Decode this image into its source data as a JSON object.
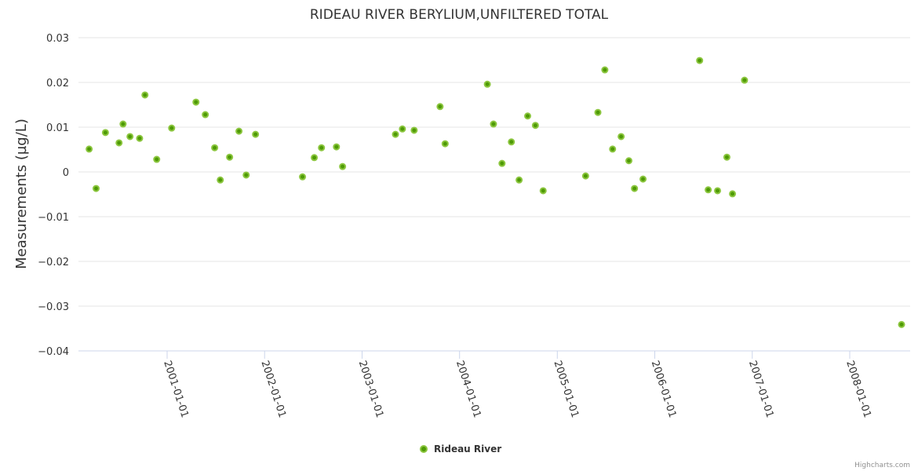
{
  "chart_data": {
    "type": "scatter",
    "title": "RIDEAU RIVER BERYLIUM,UNFILTERED TOTAL",
    "xlabel": "",
    "ylabel": "Measurements (µg/L)",
    "ylim": [
      -0.04,
      0.03
    ],
    "yticks": [
      "0.03",
      "0.02",
      "0.01",
      "0",
      "−0.01",
      "−0.02",
      "−0.03",
      "−0.04"
    ],
    "ytick_values": [
      0.03,
      0.02,
      0.01,
      0,
      -0.01,
      -0.02,
      -0.03,
      -0.04
    ],
    "xticks": [
      "2001-01-01",
      "2002-01-01",
      "2003-01-01",
      "2004-01-01",
      "2005-01-01",
      "2006-01-01",
      "2007-01-01",
      "2008-01-01"
    ],
    "grid": true,
    "legend_position": "bottom-center",
    "series": [
      {
        "name": "Rideau River",
        "color": "#4e9a06",
        "border_color": "#8cc63f",
        "points": [
          [
            "2000-03-15",
            0.0051
          ],
          [
            "2000-04-10",
            -0.0037
          ],
          [
            "2000-05-15",
            0.0088
          ],
          [
            "2000-07-05",
            0.0065
          ],
          [
            "2000-07-20",
            0.0107
          ],
          [
            "2000-08-15",
            0.0079
          ],
          [
            "2000-09-20",
            0.0075
          ],
          [
            "2000-10-10",
            0.0172
          ],
          [
            "2000-11-23",
            0.0028
          ],
          [
            "2001-01-18",
            0.0098
          ],
          [
            "2001-04-19",
            0.0156
          ],
          [
            "2001-05-24",
            0.0128
          ],
          [
            "2001-06-28",
            0.0054
          ],
          [
            "2001-07-19",
            -0.0018
          ],
          [
            "2001-08-23",
            0.0033
          ],
          [
            "2001-09-27",
            0.0091
          ],
          [
            "2001-10-24",
            -0.0007
          ],
          [
            "2001-11-28",
            0.0084
          ],
          [
            "2002-05-23",
            -0.0011
          ],
          [
            "2002-07-06",
            0.0032
          ],
          [
            "2002-08-02",
            0.0054
          ],
          [
            "2002-09-27",
            0.0056
          ],
          [
            "2002-10-20",
            0.0012
          ],
          [
            "2003-05-06",
            0.0084
          ],
          [
            "2003-06-01",
            0.0096
          ],
          [
            "2003-07-15",
            0.0093
          ],
          [
            "2003-10-20",
            0.0146
          ],
          [
            "2003-11-08",
            0.0063
          ],
          [
            "2004-04-14",
            0.0196
          ],
          [
            "2004-05-07",
            0.0107
          ],
          [
            "2004-06-08",
            0.0019
          ],
          [
            "2004-07-13",
            0.0067
          ],
          [
            "2004-08-11",
            -0.0018
          ],
          [
            "2004-09-12",
            0.0125
          ],
          [
            "2004-10-11",
            0.0104
          ],
          [
            "2004-11-09",
            -0.0042
          ],
          [
            "2005-04-17",
            -0.0009
          ],
          [
            "2005-06-02",
            0.0133
          ],
          [
            "2005-06-28",
            0.0228
          ],
          [
            "2005-07-27",
            0.0051
          ],
          [
            "2005-08-28",
            0.0079
          ],
          [
            "2005-09-26",
            0.0025
          ],
          [
            "2005-10-17",
            -0.0037
          ],
          [
            "2005-11-18",
            -0.0016
          ],
          [
            "2006-06-18",
            0.0249
          ],
          [
            "2006-07-20",
            -0.004
          ],
          [
            "2006-08-24",
            -0.0042
          ],
          [
            "2006-09-28",
            0.0033
          ],
          [
            "2006-10-19",
            -0.0049
          ],
          [
            "2006-12-03",
            0.0205
          ],
          [
            "2008-07-13",
            -0.0341
          ]
        ]
      }
    ]
  },
  "credits": "Highcharts.com"
}
